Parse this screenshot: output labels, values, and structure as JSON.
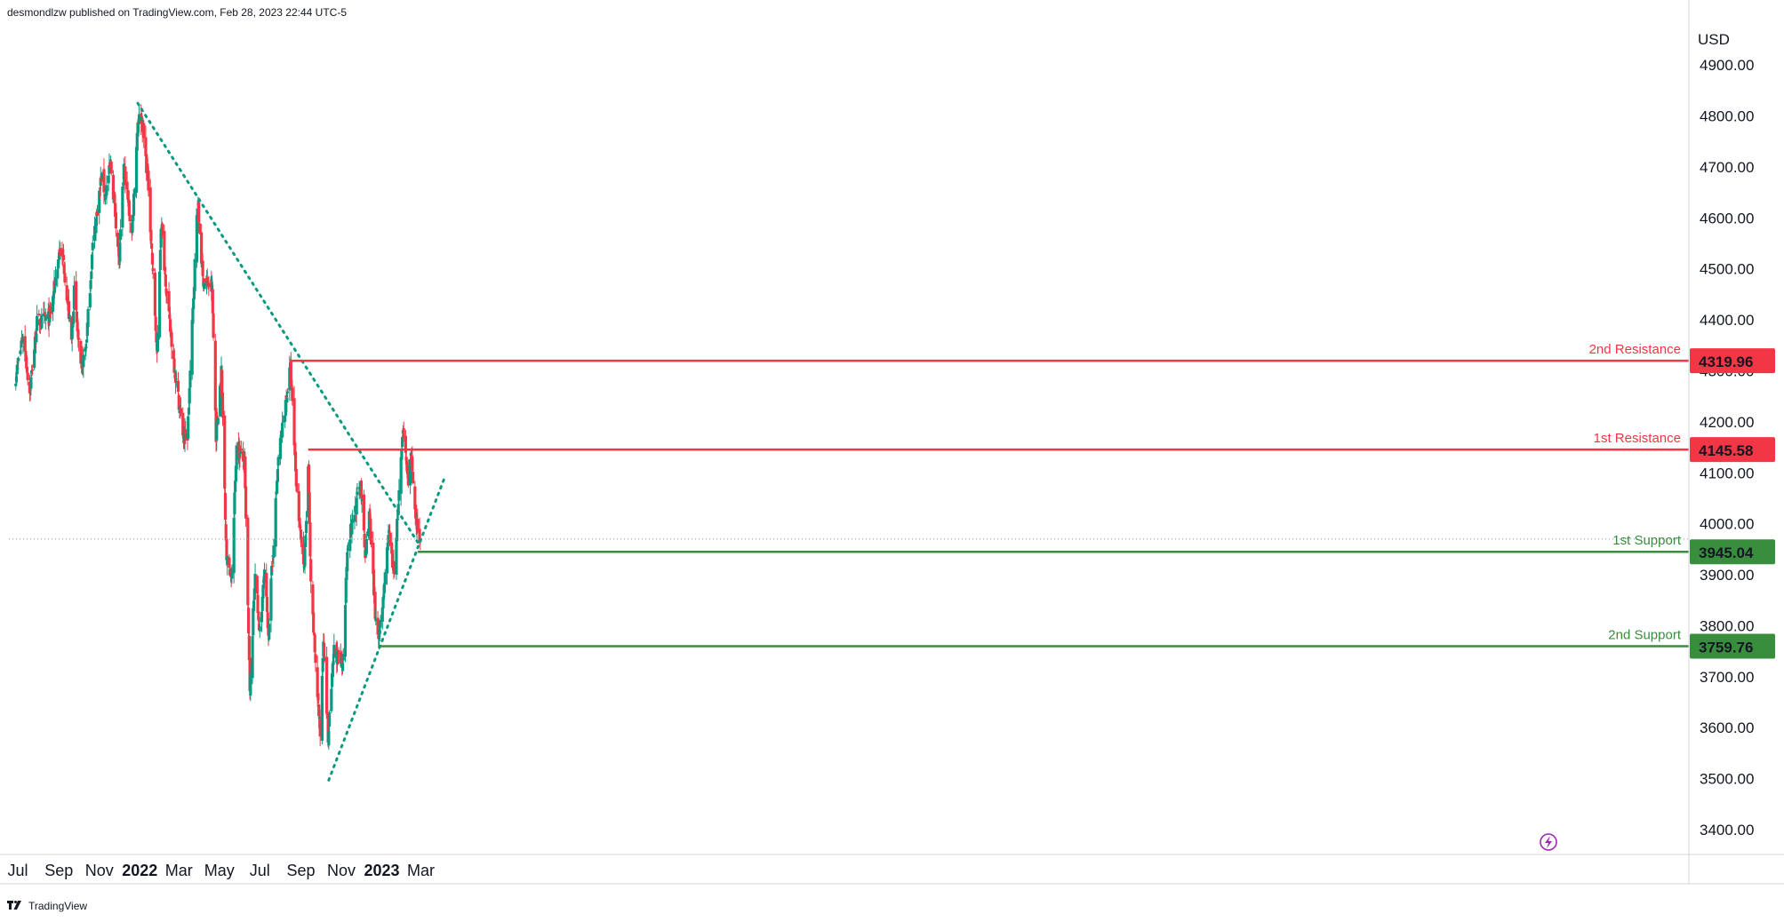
{
  "header": {
    "publish_text": "desmondlzw published on TradingView.com, Feb 28, 2023 22:44 UTC-5"
  },
  "footer": {
    "brand": "TradingView"
  },
  "chart_data": {
    "type": "candlestick",
    "currency": "USD",
    "y_ticks": [
      "3400.00",
      "3500.00",
      "3600.00",
      "3700.00",
      "3800.00",
      "3900.00",
      "4000.00",
      "4100.00",
      "4200.00",
      "4300.00",
      "4400.00",
      "4500.00",
      "4600.00",
      "4700.00",
      "4800.00",
      "4900.00"
    ],
    "ylim": [
      3400,
      4900
    ],
    "x_ticks": [
      {
        "label": "Jul",
        "date": "2021-07-01",
        "bold": false
      },
      {
        "label": "Sep",
        "date": "2021-09-01",
        "bold": false
      },
      {
        "label": "Nov",
        "date": "2021-11-01",
        "bold": false
      },
      {
        "label": "2022",
        "date": "2022-01-01",
        "bold": true
      },
      {
        "label": "Mar",
        "date": "2022-03-01",
        "bold": false
      },
      {
        "label": "May",
        "date": "2022-05-01",
        "bold": false
      },
      {
        "label": "Jul",
        "date": "2022-07-01",
        "bold": false
      },
      {
        "label": "Sep",
        "date": "2022-09-01",
        "bold": false
      },
      {
        "label": "Nov",
        "date": "2022-11-01",
        "bold": false
      },
      {
        "label": "2023",
        "date": "2023-01-01",
        "bold": true
      },
      {
        "label": "Mar",
        "date": "2023-03-01",
        "bold": false
      }
    ],
    "close_path": [
      [
        "2021-06-28",
        4290
      ],
      [
        "2021-07-09",
        4370
      ],
      [
        "2021-07-19",
        4258
      ],
      [
        "2021-07-30",
        4395
      ],
      [
        "2021-08-19",
        4405
      ],
      [
        "2021-09-02",
        4537
      ],
      [
        "2021-09-08",
        4514
      ],
      [
        "2021-09-20",
        4358
      ],
      [
        "2021-09-24",
        4455
      ],
      [
        "2021-10-04",
        4300
      ],
      [
        "2021-10-12",
        4350
      ],
      [
        "2021-10-22",
        4545
      ],
      [
        "2021-11-04",
        4680
      ],
      [
        "2021-11-10",
        4646
      ],
      [
        "2021-11-18",
        4704
      ],
      [
        "2021-11-26",
        4594
      ],
      [
        "2021-12-01",
        4513
      ],
      [
        "2021-12-08",
        4701
      ],
      [
        "2021-12-14",
        4634
      ],
      [
        "2021-12-20",
        4568
      ],
      [
        "2021-12-29",
        4793
      ],
      [
        "2022-01-04",
        4796
      ],
      [
        "2022-01-14",
        4662
      ],
      [
        "2022-01-24",
        4410
      ],
      [
        "2022-01-27",
        4326
      ],
      [
        "2022-02-02",
        4589
      ],
      [
        "2022-02-14",
        4402
      ],
      [
        "2022-02-24",
        4288
      ],
      [
        "2022-03-08",
        4170
      ],
      [
        "2022-03-14",
        4173
      ],
      [
        "2022-03-29",
        4632
      ],
      [
        "2022-04-06",
        4481
      ],
      [
        "2022-04-20",
        4459
      ],
      [
        "2022-04-26",
        4175
      ],
      [
        "2022-05-04",
        4300
      ],
      [
        "2022-05-12",
        3930
      ],
      [
        "2022-05-20",
        3901
      ],
      [
        "2022-05-27",
        4158
      ],
      [
        "2022-06-08",
        4115
      ],
      [
        "2022-06-16",
        3666
      ],
      [
        "2022-06-24",
        3912
      ],
      [
        "2022-06-30",
        3785
      ],
      [
        "2022-07-08",
        3899
      ],
      [
        "2022-07-14",
        3790
      ],
      [
        "2022-07-29",
        4130
      ],
      [
        "2022-08-16",
        4305
      ],
      [
        "2022-08-26",
        4057
      ],
      [
        "2022-09-06",
        3908
      ],
      [
        "2022-09-12",
        4110
      ],
      [
        "2022-09-16",
        3873
      ],
      [
        "2022-09-30",
        3586
      ],
      [
        "2022-10-05",
        3783
      ],
      [
        "2022-10-12",
        3577
      ],
      [
        "2022-10-21",
        3752
      ],
      [
        "2022-11-03",
        3720
      ],
      [
        "2022-11-10",
        3956
      ],
      [
        "2022-11-30",
        4080
      ],
      [
        "2022-12-07",
        3933
      ],
      [
        "2022-12-13",
        4019
      ],
      [
        "2022-12-22",
        3822
      ],
      [
        "2022-12-28",
        3783
      ],
      [
        "2023-01-06",
        3895
      ],
      [
        "2023-01-12",
        3983
      ],
      [
        "2023-01-19",
        3898
      ],
      [
        "2023-02-02",
        4179
      ],
      [
        "2023-02-10",
        4090
      ],
      [
        "2023-02-14",
        4136
      ],
      [
        "2023-02-21",
        3997
      ],
      [
        "2023-02-28",
        3970
      ]
    ],
    "current_price": 3970,
    "trendlines": [
      {
        "name": "descending",
        "style": "dotted",
        "color": "#089981",
        "from": [
          "2021-12-29",
          4825
        ],
        "to": [
          "2023-02-27",
          3958
        ]
      },
      {
        "name": "ascending",
        "style": "dotted",
        "color": "#089981",
        "from": [
          "2022-10-13",
          3497
        ],
        "to": [
          "2023-04-07",
          4095
        ]
      }
    ],
    "levels": [
      {
        "label": "2nd Resistance",
        "value": 4319.96,
        "value_text": "4319.96",
        "color": "#f23645",
        "from": "2022-08-16"
      },
      {
        "label": "1st Resistance",
        "value": 4145.58,
        "value_text": "4145.58",
        "color": "#f23645",
        "from": "2022-09-12"
      },
      {
        "label": "1st Support",
        "value": 3945.04,
        "value_text": "3945.04",
        "color": "#388e3c",
        "from": "2023-02-24"
      },
      {
        "label": "2nd Support",
        "value": 3759.76,
        "value_text": "3759.76",
        "color": "#388e3c",
        "from": "2022-12-28"
      }
    ]
  }
}
